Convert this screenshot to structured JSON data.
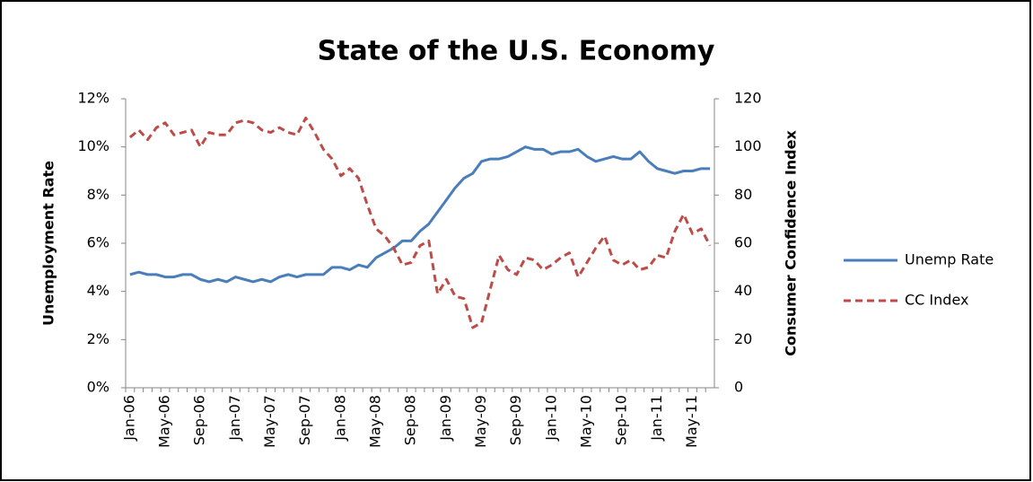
{
  "chart_data": {
    "type": "line",
    "title": "State of the U.S. Economy",
    "y_label": "Unemployment Rate",
    "y2_label": "Consumer Confidence Index",
    "categories": [
      "Jan-06",
      null,
      null,
      null,
      "May-06",
      null,
      null,
      null,
      "Sep-06",
      null,
      null,
      null,
      "Jan-07",
      null,
      null,
      null,
      "May-07",
      null,
      null,
      null,
      "Sep-07",
      null,
      null,
      null,
      "Jan-08",
      null,
      null,
      null,
      "May-08",
      null,
      null,
      null,
      "Sep-08",
      null,
      null,
      null,
      "Jan-09",
      null,
      null,
      null,
      "May-09",
      null,
      null,
      null,
      "Sep-09",
      null,
      null,
      null,
      "Jan-10",
      null,
      null,
      null,
      "May-10",
      null,
      null,
      null,
      "Sep-10",
      null,
      null,
      null,
      "Jan-11",
      null,
      null,
      null,
      "May-11",
      null,
      null
    ],
    "series": [
      {
        "name": "Unemp Rate",
        "color": "#4a7ebb",
        "dashed": false,
        "axis": "y",
        "values": [
          4.7,
          4.8,
          4.7,
          4.7,
          4.6,
          4.6,
          4.7,
          4.7,
          4.5,
          4.4,
          4.5,
          4.4,
          4.6,
          4.5,
          4.4,
          4.5,
          4.4,
          4.6,
          4.7,
          4.6,
          4.7,
          4.7,
          4.7,
          5.0,
          5.0,
          4.9,
          5.1,
          5.0,
          5.4,
          5.6,
          5.8,
          6.1,
          6.1,
          6.5,
          6.8,
          7.3,
          7.8,
          8.3,
          8.7,
          8.9,
          9.4,
          9.5,
          9.5,
          9.6,
          9.8,
          10.0,
          9.9,
          9.9,
          9.7,
          9.8,
          9.8,
          9.9,
          9.6,
          9.4,
          9.5,
          9.6,
          9.5,
          9.5,
          9.8,
          9.4,
          9.1,
          9.0,
          8.9,
          9.0,
          9.0,
          9.1,
          9.1
        ]
      },
      {
        "name": "CC Index",
        "color": "#be4b48",
        "dashed": true,
        "axis": "y2",
        "values": [
          104,
          107,
          103,
          108,
          110,
          105,
          106,
          107,
          100,
          106,
          105,
          105,
          110,
          111,
          110,
          107,
          106,
          108,
          106,
          105,
          112,
          106,
          99,
          95,
          88,
          91,
          87,
          76,
          66,
          63,
          58,
          51,
          52,
          59,
          61,
          39,
          45,
          38,
          37,
          25,
          27,
          41,
          55,
          49,
          47,
          54,
          53,
          49,
          51,
          54,
          56,
          46,
          52,
          58,
          63,
          53,
          51,
          53,
          49,
          50,
          55,
          54,
          65,
          72,
          64,
          66,
          59
        ]
      }
    ],
    "ylim": [
      0,
      12
    ],
    "yticks": [
      {
        "value": 0,
        "label": "0%"
      },
      {
        "value": 2,
        "label": "2%"
      },
      {
        "value": 4,
        "label": "4%"
      },
      {
        "value": 6,
        "label": "6%"
      },
      {
        "value": 8,
        "label": "8%"
      },
      {
        "value": 10,
        "label": "10%"
      },
      {
        "value": 12,
        "label": "12%"
      }
    ],
    "y2lim": [
      0,
      120
    ],
    "y2ticks": [
      0,
      20,
      40,
      60,
      80,
      100,
      120
    ],
    "legend": "right"
  }
}
